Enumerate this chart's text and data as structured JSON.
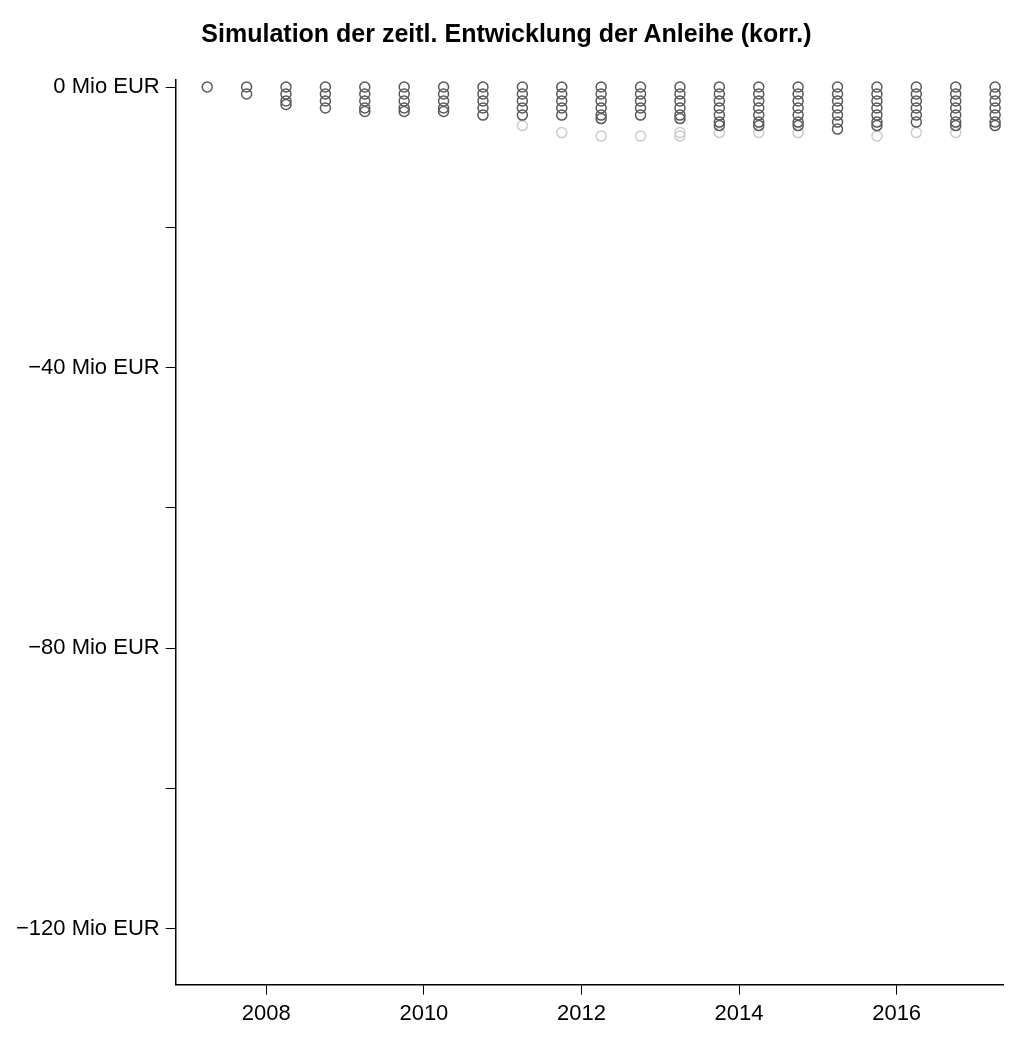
{
  "chart_data": {
    "type": "scatter",
    "title": "Simulation der zeitl. Entwicklung der Anleihe (korr.)",
    "xlim": [
      2006.85,
      2017.35
    ],
    "xticks": [
      2008,
      2010,
      2012,
      2014,
      2016
    ],
    "ylim": [
      -128,
      1
    ],
    "yticks": [
      {
        "value": 0,
        "label": "0 Mio EUR"
      },
      {
        "value": -20,
        "label": null
      },
      {
        "value": -40,
        "label": "−40 Mio EUR"
      },
      {
        "value": -60,
        "label": null
      },
      {
        "value": -80,
        "label": "−80 Mio EUR"
      },
      {
        "value": -100,
        "label": null
      },
      {
        "value": -120,
        "label": "−120 Mio EUR"
      }
    ],
    "marker": "circle",
    "grid": false,
    "legend": false,
    "series": [
      {
        "color": "#595959",
        "x": [
          2007.25,
          2007.75,
          2007.75,
          2008.25,
          2008.25,
          2008.25,
          2008.25,
          2008.75,
          2008.75,
          2008.75,
          2008.75,
          2009.25,
          2009.25,
          2009.25,
          2009.25,
          2009.25,
          2009.75,
          2009.75,
          2009.75,
          2009.75,
          2009.75,
          2010.25,
          2010.25,
          2010.25,
          2010.25,
          2010.25,
          2010.75,
          2010.75,
          2010.75,
          2010.75,
          2010.75,
          2011.25,
          2011.25,
          2011.25,
          2011.25,
          2011.25,
          2011.75,
          2011.75,
          2011.75,
          2011.75,
          2011.75,
          2012.25,
          2012.25,
          2012.25,
          2012.25,
          2012.25,
          2012.25,
          2012.75,
          2012.75,
          2012.75,
          2012.75,
          2012.75,
          2013.25,
          2013.25,
          2013.25,
          2013.25,
          2013.25,
          2013.25,
          2013.75,
          2013.75,
          2013.75,
          2013.75,
          2013.75,
          2013.75,
          2013.75,
          2014.25,
          2014.25,
          2014.25,
          2014.25,
          2014.25,
          2014.25,
          2014.25,
          2014.75,
          2014.75,
          2014.75,
          2014.75,
          2014.75,
          2014.75,
          2014.75,
          2015.25,
          2015.25,
          2015.25,
          2015.25,
          2015.25,
          2015.25,
          2015.25,
          2015.75,
          2015.75,
          2015.75,
          2015.75,
          2015.75,
          2015.75,
          2015.75,
          2016.25,
          2016.25,
          2016.25,
          2016.25,
          2016.25,
          2016.25,
          2016.75,
          2016.75,
          2016.75,
          2016.75,
          2016.75,
          2016.75,
          2016.75,
          2017.25,
          2017.25,
          2017.25,
          2017.25,
          2017.25,
          2017.25,
          2017.25
        ],
        "values": [
          0,
          0,
          -1,
          0,
          -1,
          -2,
          -2.5,
          0,
          -1,
          -2,
          -3,
          0,
          -1,
          -2,
          -3,
          -3.5,
          0,
          -1,
          -2,
          -3,
          -3.5,
          0,
          -1,
          -2,
          -3,
          -3.5,
          0,
          -1,
          -2,
          -3,
          -4,
          0,
          -1,
          -2,
          -3,
          -4,
          0,
          -1,
          -2,
          -3,
          -4,
          0,
          -1,
          -2,
          -3,
          -4,
          -4.5,
          0,
          -1,
          -2,
          -3,
          -4,
          0,
          -1,
          -2,
          -3,
          -4,
          -4.5,
          0,
          -1,
          -2,
          -3,
          -4,
          -5,
          -5.5,
          0,
          -1,
          -2,
          -3,
          -4,
          -5,
          -5.5,
          0,
          -1,
          -2,
          -3,
          -4,
          -5,
          -5.5,
          0,
          -1,
          -2,
          -3,
          -4,
          -5,
          -6,
          0,
          -1,
          -2,
          -3,
          -4,
          -5,
          -5.5,
          0,
          -1,
          -2,
          -3,
          -4,
          -5,
          0,
          -1,
          -2,
          -3,
          -4,
          -5,
          -5.5,
          0,
          -1,
          -2,
          -3,
          -4,
          -5,
          -5.5
        ]
      },
      {
        "color": "#cccccc",
        "x": [
          2011.25,
          2011.75,
          2012.25,
          2012.75,
          2013.25,
          2013.25,
          2013.75,
          2014.25,
          2014.75,
          2015.75,
          2016.25,
          2016.75
        ],
        "values": [
          -5.5,
          -6.5,
          -7,
          -7,
          -6.5,
          -7,
          -6.5,
          -6.5,
          -6.5,
          -7,
          -6.5,
          -6.5
        ]
      }
    ]
  }
}
